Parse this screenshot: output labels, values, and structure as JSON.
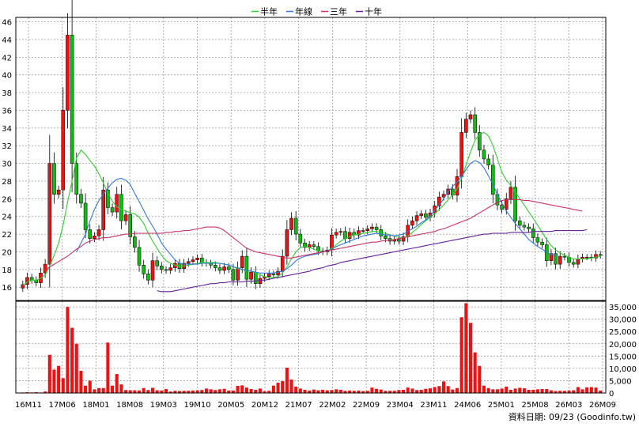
{
  "legend": [
    {
      "label": "半年",
      "color": "#33cc33"
    },
    {
      "label": "年線",
      "color": "#3377dd"
    },
    {
      "label": "三年",
      "color": "#cc3366"
    },
    {
      "label": "十年",
      "color": "#662299"
    }
  ],
  "credit": "資料日期: 09/23  (Goodinfo.tw)",
  "chart_data": {
    "type": "candlestick",
    "price_axis": {
      "ticks": [
        16,
        18,
        20,
        22,
        24,
        26,
        28,
        30,
        32,
        34,
        36,
        38,
        40,
        42,
        44,
        46
      ],
      "range": [
        14.5,
        46.5
      ]
    },
    "volume_axis": {
      "ticks": [
        "0",
        "5,000",
        "10,000",
        "15,000",
        "20,000",
        "25,000",
        "30,000",
        "35,000"
      ],
      "range": [
        0,
        36000
      ]
    },
    "x_labels": [
      "16M11",
      "17M06",
      "18M01",
      "18M08",
      "19M03",
      "19M10",
      "20M05",
      "20M12",
      "21M07",
      "22M02",
      "22M09",
      "23M04",
      "23M11",
      "24M06",
      "25M01",
      "25M08",
      "26M03",
      "26M09"
    ],
    "up_color": "#ee1111",
    "down_color": "#11bb11",
    "closes": [
      16.3,
      17.1,
      16.8,
      16.5,
      17.6,
      18.6,
      30.0,
      26.5,
      27.0,
      36.0,
      44.5,
      30.0,
      26.5,
      25.5,
      22.5,
      21.5,
      21.8,
      22.5,
      27.0,
      25.0,
      24.5,
      26.5,
      23.5,
      24.2,
      21.7,
      20.5,
      18.5,
      17.5,
      16.8,
      19.0,
      18.4,
      18.0,
      17.9,
      18.2,
      18.7,
      18.1,
      18.7,
      18.9,
      19.1,
      19.3,
      18.8,
      18.7,
      18.5,
      18.2,
      17.9,
      18.3,
      18.0,
      16.8,
      18.2,
      19.5,
      16.9,
      17.7,
      16.4,
      17.0,
      17.2,
      17.5,
      17.4,
      17.8,
      19.5,
      22.5,
      23.8,
      22.0,
      21.0,
      20.5,
      20.8,
      20.6,
      20.1,
      20.0,
      20.2,
      21.9,
      22.2,
      22.3,
      21.5,
      22.2,
      21.9,
      22.4,
      22.4,
      22.6,
      22.8,
      22.5,
      21.8,
      21.5,
      21.2,
      21.4,
      21.2,
      21.7,
      23.0,
      23.5,
      24.1,
      24.3,
      23.9,
      24.4,
      25.2,
      26.2,
      26.5,
      27.1,
      26.4,
      28.5,
      33.5,
      35.0,
      35.5,
      33.5,
      31.5,
      30.5,
      29.8,
      26.5,
      25.3,
      24.8,
      26.0,
      27.3,
      23.5,
      23.0,
      22.8,
      22.6,
      21.6,
      21.1,
      20.8,
      19.0,
      19.8,
      18.6,
      19.5,
      19.4,
      18.8,
      18.6,
      19.2,
      19.4,
      19.4,
      19.3,
      19.7,
      19.6
    ],
    "volumes": [
      200,
      300,
      200,
      300,
      200,
      600,
      15500,
      9500,
      11000,
      6000,
      35000,
      26500,
      20000,
      9000,
      3000,
      5000,
      1500,
      2000,
      2000,
      20500,
      3000,
      7700,
      3500,
      1200,
      1100,
      1100,
      1000,
      2000,
      1200,
      2100,
      1100,
      1000,
      1600,
      600,
      900,
      800,
      900,
      900,
      1000,
      1100,
      1200,
      1800,
      1500,
      1200,
      1500,
      1700,
      1000,
      1000,
      2900,
      3100,
      2200,
      1600,
      1300,
      1800,
      700,
      900,
      3000,
      4200,
      4800,
      10300,
      5500,
      2600,
      1800,
      1300,
      1000,
      1400,
      1100,
      1300,
      1100,
      1200,
      1500,
      1300,
      900,
      1000,
      900,
      1000,
      800,
      900,
      2200,
      1700,
      1400,
      900,
      900,
      900,
      1200,
      1300,
      2200,
      1800,
      1200,
      1300,
      1700,
      1900,
      2400,
      2800,
      4700,
      2800,
      1400,
      2000,
      30800,
      36500,
      28500,
      16500,
      11000,
      3000,
      2000,
      1500,
      1500,
      1800,
      2600,
      1300,
      1800,
      2100,
      1900,
      1300,
      1300,
      1500,
      1600,
      1600,
      1100,
      800,
      900,
      900,
      1000,
      1100,
      2400,
      1500,
      2300,
      2400,
      2200,
      1000
    ],
    "ma_half_year": [
      16.2,
      16.6,
      16.8,
      16.8,
      17.0,
      17.4,
      18.4,
      19.6,
      21.0,
      23.0,
      25.6,
      28.0,
      30.6,
      31.5,
      31.0,
      30.3,
      29.7,
      28.8,
      27.8,
      26.6,
      25.7,
      25.1,
      24.8,
      24.6,
      24.4,
      24.3,
      23.9,
      23.2,
      22.1,
      21.2,
      20.4,
      19.6,
      19.0,
      18.7,
      18.5,
      18.4,
      18.4,
      18.5,
      18.6,
      18.7,
      18.8,
      18.8,
      18.8,
      18.8,
      18.7,
      18.6,
      18.5,
      18.3,
      18.1,
      18.0,
      17.9,
      17.8,
      17.6,
      17.4,
      17.2,
      17.1,
      17.1,
      17.2,
      17.6,
      18.3,
      19.2,
      20.0,
      20.5,
      20.6,
      20.5,
      20.3,
      20.1,
      20.0,
      20.1,
      20.4,
      20.8,
      21.2,
      21.5,
      21.7,
      21.9,
      22.0,
      22.1,
      22.2,
      22.3,
      22.3,
      22.2,
      22.1,
      21.9,
      21.8,
      21.6,
      21.6,
      21.8,
      22.2,
      22.6,
      23.1,
      23.5,
      23.9,
      24.3,
      24.8,
      25.3,
      25.9,
      26.4,
      27.1,
      28.3,
      29.8,
      31.3,
      32.6,
      33.3,
      33.5,
      33.1,
      32.0,
      30.5,
      29.0,
      28.1,
      27.5,
      26.8,
      26.0,
      25.3,
      24.5,
      23.8,
      23.0,
      22.2,
      21.4,
      20.7,
      20.2,
      19.9,
      19.6,
      19.4,
      19.2,
      19.2,
      19.2,
      19.2,
      19.3,
      19.4,
      19.5
    ],
    "ma_year": [
      null,
      null,
      null,
      null,
      null,
      null,
      null,
      null,
      null,
      null,
      null,
      null,
      20.0,
      21.0,
      22.0,
      23.5,
      24.8,
      25.8,
      26.5,
      27.2,
      27.8,
      28.2,
      28.3,
      28.1,
      27.6,
      26.6,
      25.7,
      24.7,
      23.7,
      22.9,
      22.0,
      21.0,
      20.3,
      19.7,
      19.1,
      18.7,
      18.6,
      18.6,
      18.6,
      18.6,
      18.7,
      18.7,
      18.7,
      18.7,
      18.7,
      18.6,
      18.5,
      18.3,
      18.2,
      18.0,
      17.9,
      17.8,
      17.7,
      17.6,
      17.6,
      17.6,
      17.6,
      17.7,
      17.8,
      18.1,
      18.5,
      19.0,
      19.3,
      19.5,
      19.6,
      19.7,
      19.8,
      20.0,
      20.1,
      20.3,
      20.6,
      20.8,
      21.0,
      21.2,
      21.4,
      21.6,
      21.8,
      21.9,
      22.0,
      22.1,
      22.0,
      21.9,
      21.9,
      21.8,
      21.9,
      22.0,
      22.3,
      22.6,
      22.9,
      23.3,
      23.6,
      24.1,
      24.7,
      25.3,
      26.0,
      26.8,
      27.4,
      27.9,
      28.5,
      29.3,
      30.0,
      30.3,
      30.1,
      29.5,
      28.6,
      27.6,
      26.5,
      25.5,
      24.6,
      23.9,
      23.2,
      22.6,
      22.0,
      21.4,
      21.0,
      20.6,
      20.3,
      20.0,
      19.7,
      19.6
    ],
    "ma_three_year": [
      null,
      null,
      null,
      null,
      null,
      17.9,
      18.3,
      18.6,
      18.9,
      19.2,
      19.5,
      19.9,
      20.3,
      20.6,
      21.0,
      21.2,
      21.4,
      21.5,
      21.6,
      21.6,
      21.7,
      21.8,
      21.9,
      22.0,
      22.0,
      22.1,
      22.1,
      22.1,
      22.1,
      22.1,
      22.1,
      22.1,
      22.2,
      22.2,
      22.3,
      22.3,
      22.4,
      22.4,
      22.5,
      22.6,
      22.7,
      22.8,
      22.8,
      22.8,
      22.7,
      22.4,
      22.0,
      21.6,
      21.2,
      20.8,
      20.4,
      20.2,
      20.0,
      19.9,
      19.8,
      19.7,
      19.6,
      19.5,
      19.4,
      19.3,
      19.3,
      19.4,
      19.5,
      19.6,
      19.7,
      19.8,
      19.9,
      20.0,
      20.1,
      20.2,
      20.3,
      20.4,
      20.5,
      20.6,
      20.7,
      20.8,
      20.9,
      21.0,
      21.1,
      21.1,
      21.2,
      21.3,
      21.3,
      21.4,
      21.5,
      21.6,
      21.7,
      21.8,
      21.9,
      22.0,
      22.1,
      22.2,
      22.3,
      22.5,
      22.6,
      22.8,
      23.0,
      23.2,
      23.4,
      23.6,
      23.8,
      24.1,
      24.4,
      24.7,
      25.0,
      25.3,
      25.6,
      25.8,
      25.9,
      25.9,
      25.9,
      25.9,
      25.8,
      25.8,
      25.7,
      25.6,
      25.5,
      25.4,
      25.3,
      25.2,
      25.1,
      25.0,
      24.9,
      24.8,
      24.7,
      24.6
    ],
    "ma_ten_year": [
      null,
      null,
      null,
      null,
      null,
      null,
      null,
      null,
      null,
      null,
      null,
      null,
      null,
      null,
      null,
      null,
      null,
      null,
      null,
      null,
      null,
      null,
      null,
      null,
      null,
      null,
      null,
      null,
      null,
      null,
      15.6,
      15.5,
      15.5,
      15.5,
      15.6,
      15.7,
      15.8,
      15.9,
      16.0,
      16.1,
      16.2,
      16.3,
      16.4,
      16.4,
      16.5,
      16.5,
      16.6,
      16.6,
      16.6,
      16.6,
      16.7,
      16.7,
      16.7,
      16.8,
      16.8,
      16.9,
      17.0,
      17.1,
      17.2,
      17.3,
      17.4,
      17.5,
      17.6,
      17.7,
      17.8,
      18.0,
      18.1,
      18.2,
      18.4,
      18.5,
      18.6,
      18.8,
      18.9,
      19.0,
      19.1,
      19.2,
      19.3,
      19.4,
      19.5,
      19.6,
      19.7,
      19.8,
      19.9,
      20.0,
      20.1,
      20.2,
      20.3,
      20.4,
      20.5,
      20.6,
      20.7,
      20.8,
      20.9,
      21.0,
      21.1,
      21.2,
      21.3,
      21.4,
      21.5,
      21.6,
      21.7,
      21.8,
      21.9,
      22.0,
      22.0,
      22.1,
      22.1,
      22.1,
      22.1,
      22.2,
      22.2,
      22.2,
      22.2,
      22.2,
      22.3,
      22.3,
      22.3,
      22.3,
      22.3,
      22.4,
      22.4,
      22.4,
      22.4,
      22.4,
      22.4,
      22.4,
      22.5
    ]
  }
}
